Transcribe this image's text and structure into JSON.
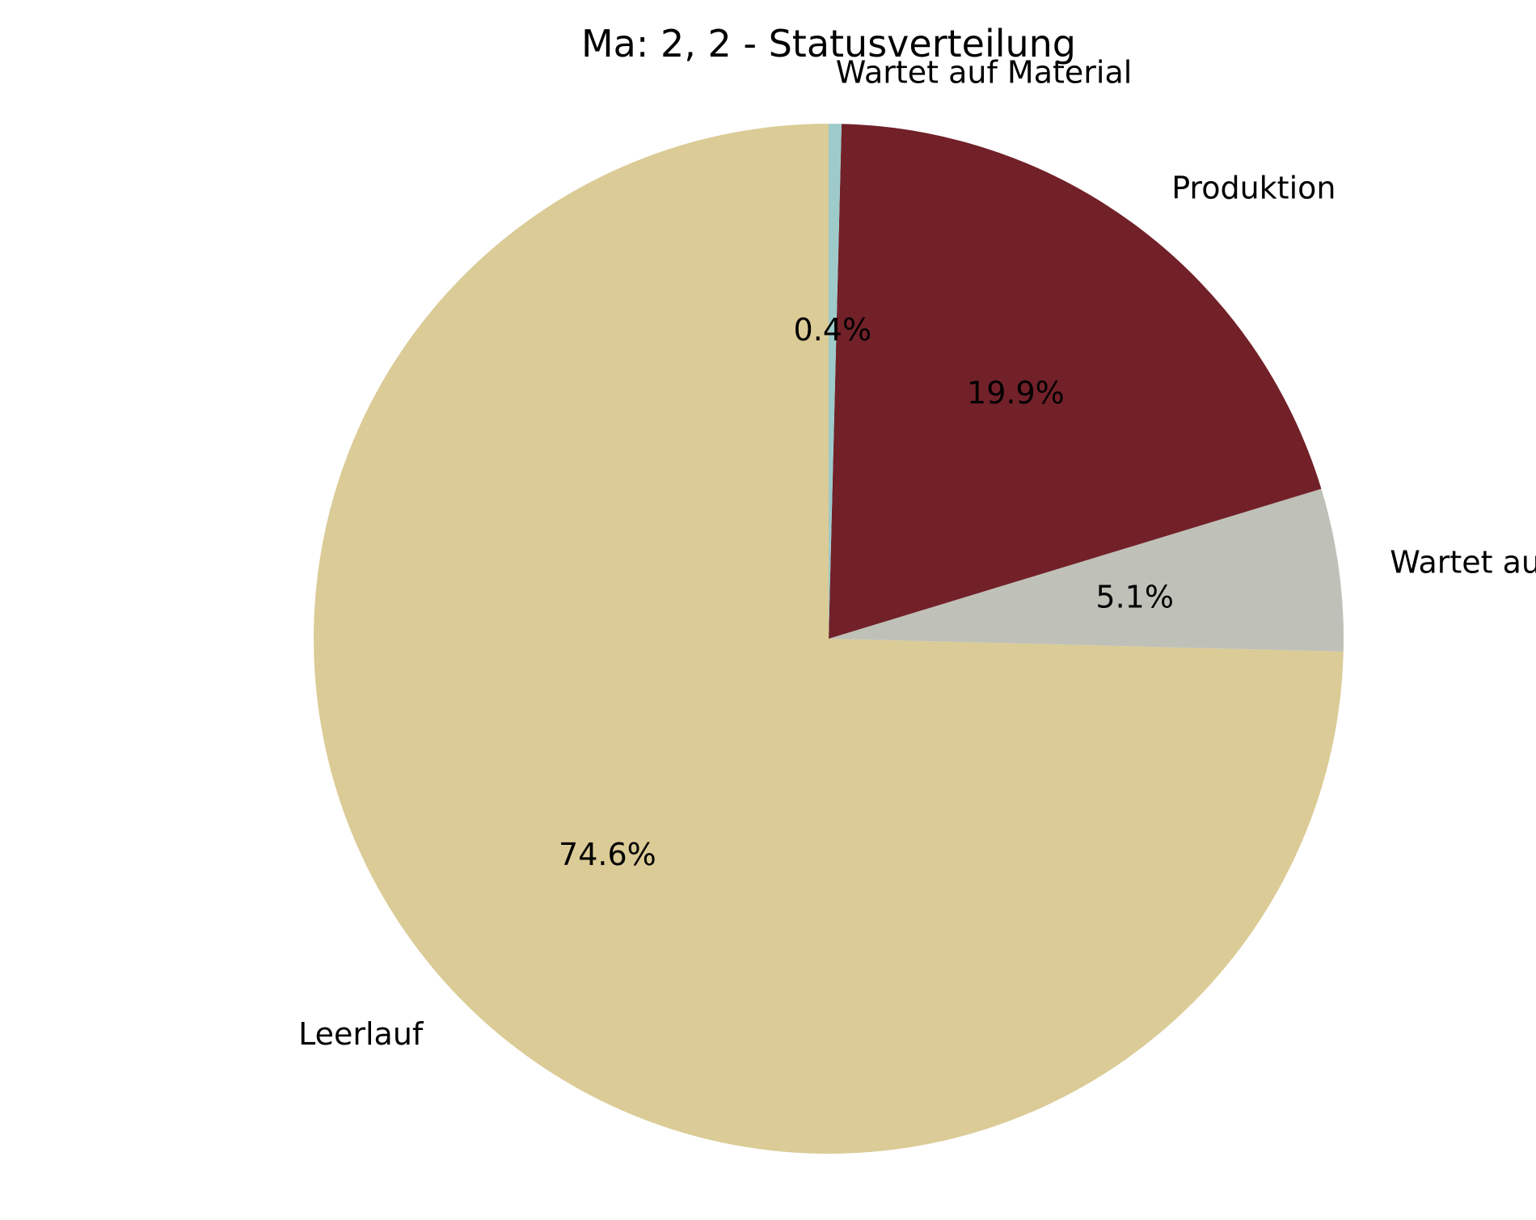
{
  "chart_data": {
    "type": "pie",
    "title": "Ma: 2, 2 - Statusverteilung",
    "start_angle_deg": 90,
    "direction": "counterclockwise",
    "slices": [
      {
        "label": "Leerlauf",
        "value": 74.6,
        "pct_label": "74.6%",
        "color": "#dbcb96"
      },
      {
        "label": "Wartet auf WR",
        "value": 5.1,
        "pct_label": "5.1%",
        "color": "#bfc1b8"
      },
      {
        "label": "Produktion",
        "value": 19.9,
        "pct_label": "19.9%",
        "color": "#722129"
      },
      {
        "label": "Wartet auf Material",
        "value": 0.4,
        "pct_label": "0.4%",
        "color": "#9ecaca"
      }
    ]
  }
}
